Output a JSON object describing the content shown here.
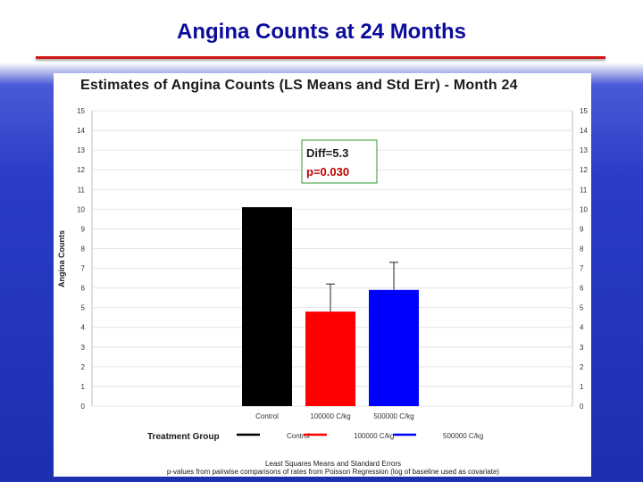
{
  "slide": {
    "title": "Angina Counts at 24 Months"
  },
  "chart_data": {
    "type": "bar",
    "title": "Estimates of Angina Counts (LS Means and Std Err) - Month 24",
    "ylabel": "Angina Counts",
    "xlabel": "Treatment Group",
    "ylim": [
      0,
      15
    ],
    "yticks": [
      0,
      1,
      2,
      3,
      4,
      5,
      6,
      7,
      8,
      9,
      10,
      11,
      12,
      13,
      14,
      15
    ],
    "categories": [
      "Control",
      "100000 C/kg",
      "500000 C/kg"
    ],
    "values": [
      10.1,
      4.8,
      5.9
    ],
    "errors": [
      0.0,
      1.4,
      1.4
    ],
    "colors": [
      "#000000",
      "#ff0000",
      "#0000ff"
    ],
    "grid": true,
    "legend": {
      "title": "Treatment Group",
      "placement": "bottom",
      "entries": [
        {
          "name": "Control",
          "color": "#000000"
        },
        {
          "name": "100000 C/kg",
          "color": "#ff0000"
        },
        {
          "name": "500000 C/kg",
          "color": "#0000ff"
        }
      ]
    },
    "annotation": {
      "diff": "Diff=5.3",
      "p": "p=0.030"
    },
    "footnotes": [
      "Least Squares Means and Standard Errors",
      "p-values from pairwise comparisons of rates from Poisson Regression (log of baseline used as covariate)"
    ]
  }
}
